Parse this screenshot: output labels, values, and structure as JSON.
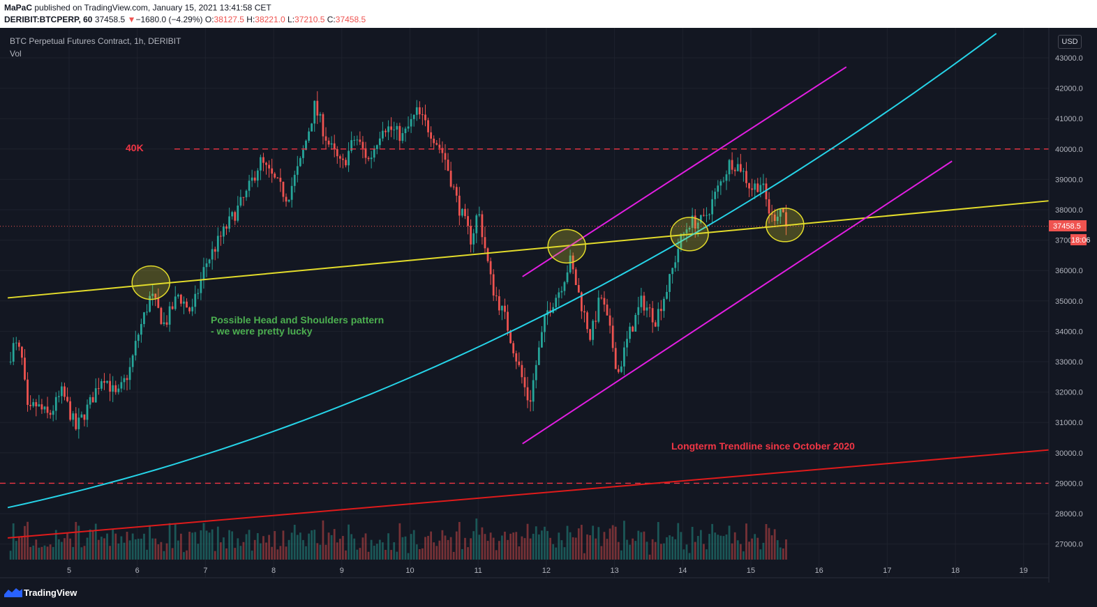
{
  "header": {
    "publisher": "MaPaC",
    "published_text": "published on TradingView.com, January 15, 2021 13:41:58 CET",
    "symbol": "DERIBIT:BTCPERP, 60",
    "last": "37458.5",
    "change_arrow": "▼",
    "change": "−1680.0 (−4.29%)",
    "o_label": "O:",
    "o_value": "38127.5",
    "h_label": "H:",
    "h_value": "38221.0",
    "l_label": "L:",
    "l_value": "37210.5",
    "c_label": "C:",
    "c_value": "37458.5"
  },
  "legend": {
    "title": "BTC Perpetual Futures Contract, 1h, DERIBIT",
    "vol": "Vol"
  },
  "price_axis": {
    "currency": "USD",
    "last_price_label": "37458.5",
    "countdown_label": "18:06"
  },
  "annotations": {
    "level_40k": "40K",
    "hs_line1": "Possible Head and Shoulders pattern",
    "hs_line2": "- we were pretty lucky",
    "longterm": "Longterm Trendline since October 2020"
  },
  "footer": {
    "brand": "TradingView"
  },
  "colors": {
    "background": "#131722",
    "up": "#26a69a",
    "down": "#ef5350",
    "yellow_line": "#e3dc2b",
    "cyan_curve": "#26d4e8",
    "magenta_channel": "#e21ee2",
    "red_trend": "#e01b1b",
    "annotation_green": "#4caf50",
    "annotation_red": "#f23645"
  },
  "chart_data": {
    "type": "candlestick",
    "title": "BTC Perpetual Futures Contract, 1h, DERIBIT",
    "y_unit": "USD",
    "ylim": [
      26500,
      43800
    ],
    "x_ticks": [
      "5",
      "6",
      "7",
      "8",
      "9",
      "10",
      "11",
      "12",
      "13",
      "14",
      "15",
      "16",
      "17",
      "18",
      "19"
    ],
    "y_ticks": [
      "27000.0",
      "28000.0",
      "29000.0",
      "30000.0",
      "31000.0",
      "32000.0",
      "33000.0",
      "34000.0",
      "35000.0",
      "36000.0",
      "37000.0",
      "38000.0",
      "39000.0",
      "40000.0",
      "41000.0",
      "42000.0",
      "43000.0"
    ],
    "last_price": 37458.5,
    "price_path": [
      [
        4.1,
        33000
      ],
      [
        4.2,
        33600
      ],
      [
        4.3,
        33200
      ],
      [
        4.4,
        31200
      ],
      [
        4.5,
        31600
      ],
      [
        4.7,
        31200
      ],
      [
        4.9,
        32000
      ],
      [
        5.1,
        30800
      ],
      [
        5.3,
        31600
      ],
      [
        5.5,
        32600
      ],
      [
        5.7,
        31800
      ],
      [
        5.9,
        32800
      ],
      [
        6.0,
        33800
      ],
      [
        6.2,
        35200
      ],
      [
        6.4,
        34200
      ],
      [
        6.6,
        35200
      ],
      [
        6.8,
        34600
      ],
      [
        7.0,
        36200
      ],
      [
        7.3,
        37400
      ],
      [
        7.6,
        38500
      ],
      [
        7.8,
        39600
      ],
      [
        8.0,
        39000
      ],
      [
        8.2,
        38400
      ],
      [
        8.4,
        39600
      ],
      [
        8.6,
        41400
      ],
      [
        8.8,
        40200
      ],
      [
        9.0,
        39400
      ],
      [
        9.2,
        40400
      ],
      [
        9.4,
        39600
      ],
      [
        9.6,
        40800
      ],
      [
        9.9,
        40400
      ],
      [
        10.1,
        41200
      ],
      [
        10.3,
        40600
      ],
      [
        10.5,
        39800
      ],
      [
        10.7,
        38200
      ],
      [
        10.9,
        37000
      ],
      [
        11.0,
        38000
      ],
      [
        11.2,
        35500
      ],
      [
        11.4,
        34400
      ],
      [
        11.6,
        32800
      ],
      [
        11.75,
        31600
      ],
      [
        11.85,
        32900
      ],
      [
        12.0,
        34600
      ],
      [
        12.2,
        35400
      ],
      [
        12.35,
        36300
      ],
      [
        12.5,
        35000
      ],
      [
        12.65,
        33800
      ],
      [
        12.8,
        35200
      ],
      [
        12.95,
        33800
      ],
      [
        13.05,
        32600
      ],
      [
        13.2,
        33800
      ],
      [
        13.4,
        35000
      ],
      [
        13.6,
        34400
      ],
      [
        13.8,
        35600
      ],
      [
        13.95,
        36900
      ],
      [
        14.1,
        37600
      ],
      [
        14.3,
        37600
      ],
      [
        14.5,
        38600
      ],
      [
        14.7,
        39600
      ],
      [
        14.85,
        39400
      ],
      [
        15.0,
        38700
      ],
      [
        15.15,
        38900
      ],
      [
        15.3,
        37700
      ],
      [
        15.45,
        38100
      ],
      [
        15.55,
        37458.5
      ]
    ],
    "drawings": [
      {
        "name": "40K resistance",
        "type": "horizontal_dashed",
        "price": 40000
      },
      {
        "name": "support",
        "type": "horizontal_dashed",
        "price": 29000
      },
      {
        "name": "neckline",
        "type": "trendline",
        "points": [
          [
            4.1,
            35100
          ],
          [
            19.4,
            38300
          ]
        ]
      },
      {
        "name": "parabolic curve",
        "type": "curve",
        "points": [
          [
            4.1,
            28200
          ],
          [
            18.6,
            43800
          ]
        ]
      },
      {
        "name": "channel upper",
        "type": "trendline",
        "points": [
          [
            11.65,
            35800
          ],
          [
            16.4,
            42700
          ]
        ]
      },
      {
        "name": "channel lower",
        "type": "trendline",
        "points": [
          [
            11.65,
            30300
          ],
          [
            17.95,
            39600
          ]
        ]
      },
      {
        "name": "longterm trendline",
        "type": "trendline",
        "points": [
          [
            4.1,
            27200
          ],
          [
            19.4,
            30100
          ]
        ]
      }
    ],
    "highlight_ellipses": [
      [
        6.2,
        35600
      ],
      [
        12.3,
        36800
      ],
      [
        14.1,
        37200
      ],
      [
        15.5,
        37500
      ]
    ]
  }
}
